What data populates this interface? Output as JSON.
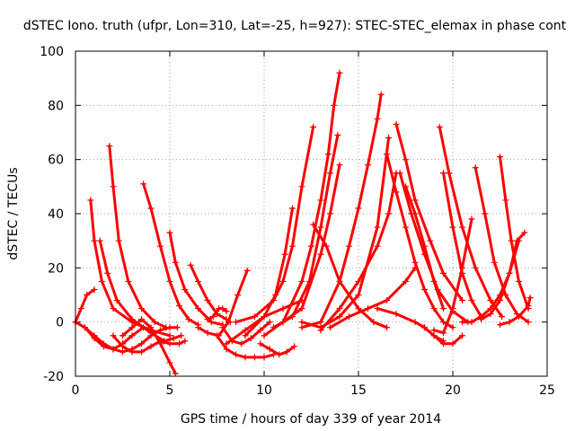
{
  "chart_data": {
    "type": "scatter",
    "title": "dSTEC Iono. truth (ufpr, Lon=310, Lat=-25, h=927): STEC-STEC_elemax in phase cont",
    "xlabel": "GPS time / hours of day 339 of year 2014",
    "ylabel": "dSTEC  / TECUs",
    "xlim": [
      0,
      25
    ],
    "ylim": [
      -20,
      100
    ],
    "xticks": [
      "0",
      "5",
      "10",
      "15",
      "20",
      "25"
    ],
    "yticks": [
      "-20",
      "0",
      "20",
      "40",
      "60",
      "80",
      "100"
    ],
    "grid": true,
    "marker": "+",
    "color": "#ff0000",
    "series": [
      {
        "x": [
          0.0,
          0.3,
          0.6,
          1.0
        ],
        "y": [
          0,
          5,
          10,
          12
        ]
      },
      {
        "x": [
          0.0,
          0.5,
          1.0,
          1.5,
          2.0,
          2.5,
          3.0,
          3.5,
          4.0,
          4.5,
          5.0,
          5.4
        ],
        "y": [
          0,
          -2,
          -5,
          -8,
          -10,
          -11,
          -10,
          -8,
          -5,
          -3,
          -2,
          -2
        ]
      },
      {
        "x": [
          0.8,
          1.0,
          1.4,
          2.0,
          3.0,
          4.0,
          5.0
        ],
        "y": [
          45,
          30,
          15,
          5,
          0,
          -3,
          -5
        ]
      },
      {
        "x": [
          0.5,
          1.0,
          1.5,
          2.0,
          2.5,
          3.0,
          3.6
        ],
        "y": [
          -2,
          -6,
          -9,
          -10,
          -8,
          -5,
          -2
        ]
      },
      {
        "x": [
          1.3,
          1.7,
          2.2,
          3.0,
          4.0,
          4.7,
          5.2,
          5.6
        ],
        "y": [
          30,
          18,
          8,
          1,
          -4,
          -7,
          -6,
          -5
        ]
      },
      {
        "x": [
          1.8,
          2.0,
          2.3,
          2.8,
          3.5,
          4.2,
          4.8
        ],
        "y": [
          65,
          50,
          30,
          15,
          5,
          0,
          -2
        ]
      },
      {
        "x": [
          2.0,
          2.5,
          3.0,
          3.5,
          4.0,
          4.5,
          5.0,
          5.5,
          5.8
        ],
        "y": [
          -5,
          -9,
          -11,
          -11,
          -9,
          -7,
          -8,
          -8,
          -7
        ]
      },
      {
        "x": [
          2.5,
          3.0,
          3.5,
          4.0,
          4.5,
          5.0,
          5.3
        ],
        "y": [
          -5,
          -2,
          1,
          -2,
          -8,
          -15,
          -19
        ]
      },
      {
        "x": [
          3.6,
          4.0,
          4.5,
          5.0,
          5.5,
          6.0,
          6.5
        ],
        "y": [
          51,
          42,
          28,
          15,
          6,
          1,
          -1
        ]
      },
      {
        "x": [
          5.0,
          5.3,
          5.8,
          6.5,
          7.2,
          7.8
        ],
        "y": [
          33,
          22,
          12,
          5,
          0,
          -1
        ]
      },
      {
        "x": [
          6.1,
          6.5,
          7.0,
          7.5,
          8.0,
          8.2
        ],
        "y": [
          21,
          15,
          8,
          3,
          1,
          0
        ]
      },
      {
        "x": [
          7.0,
          7.3,
          7.6,
          7.8,
          8.0
        ],
        "y": [
          1,
          2,
          5,
          5,
          4
        ]
      },
      {
        "x": [
          6.5,
          7.0,
          7.6,
          8.1,
          8.6,
          9.1
        ],
        "y": [
          -2,
          -4,
          -5,
          0,
          10,
          19
        ]
      },
      {
        "x": [
          7.5,
          8.0,
          8.5,
          9.0,
          9.5,
          10.0,
          10.5
        ],
        "y": [
          -5,
          -10,
          -12,
          -13,
          -13,
          -13,
          -12
        ]
      },
      {
        "x": [
          7.8,
          8.3,
          8.8,
          9.3,
          9.8,
          10.3
        ],
        "y": [
          -2,
          -7,
          -8,
          -6,
          -3,
          0
        ]
      },
      {
        "x": [
          8.0,
          9.0,
          10.0,
          11.0,
          12.0
        ],
        "y": [
          -8,
          -3,
          2,
          5,
          8
        ]
      },
      {
        "x": [
          9.8,
          10.3,
          10.8,
          11.2,
          11.6
        ],
        "y": [
          -8,
          -10,
          -12,
          -11,
          -9
        ]
      },
      {
        "x": [
          8.5,
          9.5,
          10.5,
          11.0,
          11.5,
          12.0,
          12.6
        ],
        "y": [
          0,
          2,
          8,
          15,
          28,
          50,
          72
        ]
      },
      {
        "x": [
          9.0,
          10.0,
          10.6,
          11.1,
          11.5
        ],
        "y": [
          -5,
          2,
          10,
          25,
          42
        ]
      },
      {
        "x": [
          10.0,
          11.0,
          12.0,
          12.5,
          13.0,
          13.4,
          13.7,
          14.0
        ],
        "y": [
          -5,
          0,
          15,
          28,
          45,
          62,
          80,
          92
        ]
      },
      {
        "x": [
          10.5,
          11.5,
          12.4,
          13.0,
          13.5,
          13.9
        ],
        "y": [
          -2,
          2,
          15,
          35,
          55,
          69
        ]
      },
      {
        "x": [
          11.0,
          12.0,
          13.0,
          13.5,
          14.0
        ],
        "y": [
          0,
          5,
          25,
          40,
          58
        ]
      },
      {
        "x": [
          12.0,
          13.0,
          14.0,
          14.5,
          15.0,
          15.5,
          16.0,
          16.2
        ],
        "y": [
          -2,
          0,
          15,
          28,
          42,
          58,
          75,
          84
        ]
      },
      {
        "x": [
          12.0,
          13.0,
          14.0,
          15.0,
          16.0,
          16.6
        ],
        "y": [
          0,
          -2,
          2,
          10,
          35,
          68
        ]
      },
      {
        "x": [
          12.6,
          13.3,
          14.0,
          15.0,
          15.8,
          16.5
        ],
        "y": [
          36,
          28,
          15,
          5,
          0,
          -2
        ]
      },
      {
        "x": [
          13.0,
          14.0,
          15.0,
          16.0,
          16.6,
          17.0
        ],
        "y": [
          -3,
          5,
          15,
          28,
          40,
          55
        ]
      },
      {
        "x": [
          13.5,
          14.5,
          15.5,
          16.5,
          17.5,
          18.0
        ],
        "y": [
          -2,
          2,
          5,
          8,
          15,
          20
        ]
      },
      {
        "x": [
          16.0,
          17.0,
          18.0,
          18.5,
          19.0,
          19.5
        ],
        "y": [
          5,
          3,
          0,
          -2,
          -5,
          -7
        ]
      },
      {
        "x": [
          16.5,
          17.0,
          17.5,
          18.0,
          18.5,
          19.0,
          19.5,
          20.0
        ],
        "y": [
          62,
          48,
          35,
          22,
          12,
          5,
          0,
          -2
        ]
      },
      {
        "x": [
          17.0,
          17.5,
          18.0,
          18.8,
          19.5,
          20.5
        ],
        "y": [
          73,
          60,
          45,
          30,
          18,
          8
        ]
      },
      {
        "x": [
          17.2,
          17.8,
          18.5,
          19.2,
          20.0,
          20.8
        ],
        "y": [
          55,
          40,
          25,
          12,
          4,
          0
        ]
      },
      {
        "x": [
          17.5,
          18.0,
          18.5,
          19.0,
          19.5
        ],
        "y": [
          50,
          40,
          28,
          15,
          5
        ]
      },
      {
        "x": [
          18.5,
          19.0,
          19.5,
          20.0,
          20.5
        ],
        "y": [
          -2,
          -5,
          -8,
          -8,
          -5
        ]
      },
      {
        "x": [
          19.0,
          19.5,
          20.0,
          20.5,
          21.0
        ],
        "y": [
          -3,
          -4,
          5,
          20,
          38
        ]
      },
      {
        "x": [
          19.3,
          19.8,
          20.5,
          21.2,
          22.0,
          22.6
        ],
        "y": [
          72,
          55,
          35,
          20,
          8,
          2
        ]
      },
      {
        "x": [
          19.5,
          20.0,
          20.5,
          21.0,
          21.5
        ],
        "y": [
          55,
          35,
          18,
          8,
          2
        ]
      },
      {
        "x": [
          21.2,
          21.7,
          22.2,
          22.8,
          23.4,
          24.0
        ],
        "y": [
          57,
          40,
          22,
          10,
          3,
          0
        ]
      },
      {
        "x": [
          22.5,
          22.8,
          23.1,
          23.5,
          24.0
        ],
        "y": [
          61,
          45,
          30,
          15,
          5
        ]
      },
      {
        "x": [
          20.5,
          21.0,
          21.5,
          22.0,
          22.5,
          23.0,
          23.4,
          23.8
        ],
        "y": [
          0,
          0,
          2,
          5,
          10,
          18,
          30,
          33
        ]
      },
      {
        "x": [
          21.5,
          22.0,
          22.5,
          23.0,
          23.5
        ],
        "y": [
          1,
          3,
          8,
          18,
          30
        ]
      },
      {
        "x": [
          22.5,
          23.0,
          23.5,
          24.0,
          24.1
        ],
        "y": [
          -1,
          0,
          2,
          6,
          9
        ]
      }
    ]
  }
}
